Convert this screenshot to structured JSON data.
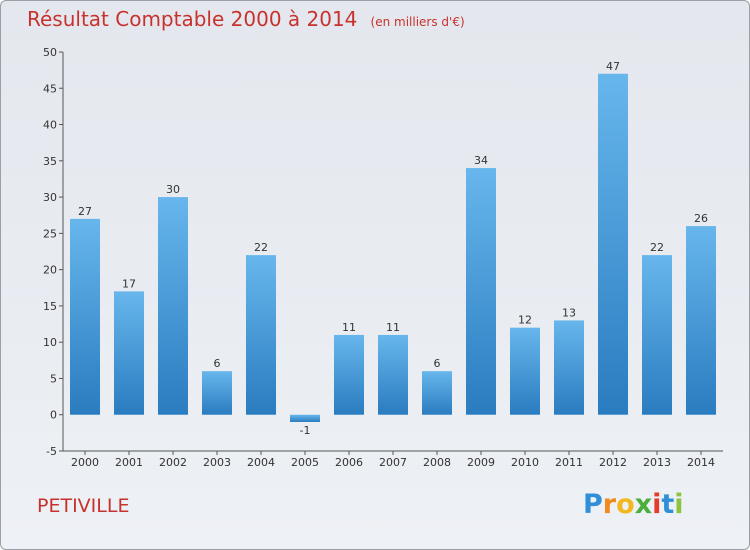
{
  "title": "Résultat Comptable 2000 à 2014",
  "unit_note": "(en milliers d'€)",
  "commune": "PETIVILLE",
  "logo": {
    "letters": [
      "P",
      "r",
      "o",
      "x",
      "i",
      "t",
      "i"
    ],
    "colors": [
      "#2f8fd8",
      "#f08a1c",
      "#f2b81e",
      "#4caf3a",
      "#e63a2a",
      "#2f8fd8",
      "#8bc53f"
    ]
  },
  "colors": {
    "bar": "#3a97dc",
    "bar_light": "#67b6ec",
    "bar_dark": "#2a7cc0",
    "title": "#c8322e"
  },
  "chart_data": {
    "type": "bar",
    "categories": [
      "2000",
      "2001",
      "2002",
      "2003",
      "2004",
      "2005",
      "2006",
      "2007",
      "2008",
      "2009",
      "2010",
      "2011",
      "2012",
      "2013",
      "2014"
    ],
    "values": [
      27,
      17,
      30,
      6,
      22,
      -1,
      11,
      11,
      6,
      34,
      12,
      13,
      47,
      22,
      26
    ],
    "value_labels": [
      "27",
      "17",
      "30",
      "6",
      "22",
      "-1",
      "11",
      "11",
      "6",
      "34",
      "12",
      "13",
      "47",
      "22",
      "26"
    ],
    "yticks": [
      -5,
      0,
      5,
      10,
      15,
      20,
      25,
      30,
      35,
      40,
      45,
      50
    ],
    "ylim": [
      -5,
      50
    ],
    "grid": false,
    "title": "Résultat Comptable 2000 à 2014",
    "xlabel": "",
    "ylabel": ""
  }
}
